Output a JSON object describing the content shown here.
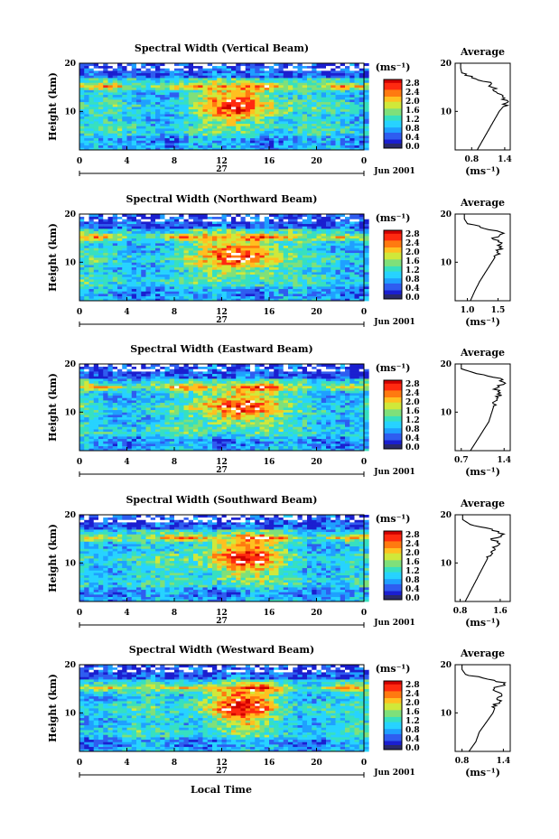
{
  "figure": {
    "date_label": "Jun 2001",
    "day_label": "27",
    "xlabel": "Local Time",
    "ylabel": "Height (km)",
    "unit_label": "(ms⁻¹)",
    "avg_title": "Average",
    "x_ticks": [
      "0",
      "4",
      "8",
      "12",
      "16",
      "20",
      "0"
    ],
    "y_ticks": [
      "20",
      "10"
    ],
    "colorbar_ticks": [
      "2.8",
      "2.4",
      "2.0",
      "1.6",
      "1.2",
      "0.8",
      "0.4",
      "0.0"
    ],
    "colors": {
      "scale": [
        "#2a2a6a",
        "#1b1fd0",
        "#2f5df0",
        "#1fa0ff",
        "#27d3ff",
        "#37e0c0",
        "#7fe07a",
        "#d0e83a",
        "#ffc020",
        "#ff7a10",
        "#ff2a10",
        "#d00000"
      ],
      "background_fill": "#ffffff"
    }
  },
  "chart_data": [
    {
      "type": "heatmap",
      "title": "Spectral Width (Vertical Beam)",
      "xlabel": "Local Time",
      "ylabel": "Height (km)",
      "xlim": [
        0,
        24
      ],
      "ylim": [
        2,
        20
      ],
      "clim": [
        0.0,
        2.8
      ],
      "x_ticks": [
        0,
        4,
        8,
        12,
        16,
        20,
        24
      ],
      "y_ticks": [
        10,
        20
      ],
      "profile": {
        "title": "Average",
        "xlabel": "(ms⁻¹)",
        "xlim": [
          0.5,
          1.5
        ],
        "x_ticks": [
          0.8,
          1.4
        ],
        "height": [
          2,
          4,
          6,
          8,
          10,
          12,
          14,
          16,
          17,
          18,
          19,
          20
        ],
        "value": [
          0.9,
          1.0,
          1.1,
          1.2,
          1.3,
          1.45,
          1.25,
          1.1,
          0.8,
          0.62,
          0.6,
          0.6
        ]
      }
    },
    {
      "type": "heatmap",
      "title": "Spectral Width (Northward Beam)",
      "xlabel": "Local Time",
      "ylabel": "Height (km)",
      "xlim": [
        0,
        24
      ],
      "ylim": [
        2,
        20
      ],
      "clim": [
        0.0,
        2.8
      ],
      "x_ticks": [
        0,
        4,
        8,
        12,
        16,
        20,
        24
      ],
      "y_ticks": [
        10,
        20
      ],
      "profile": {
        "title": "Average",
        "xlabel": "(ms⁻¹)",
        "xlim": [
          0.8,
          1.7
        ],
        "x_ticks": [
          1.0,
          1.5
        ],
        "height": [
          2,
          4,
          6,
          8,
          10,
          12,
          14,
          15,
          16,
          17,
          18,
          19,
          20
        ],
        "value": [
          1.05,
          1.12,
          1.2,
          1.3,
          1.4,
          1.5,
          1.55,
          1.45,
          1.58,
          1.3,
          1.0,
          0.95,
          0.95
        ]
      }
    },
    {
      "type": "heatmap",
      "title": "Spectral Width (Eastward Beam)",
      "xlabel": "Local Time",
      "ylabel": "Height (km)",
      "xlim": [
        0,
        24
      ],
      "ylim": [
        2,
        20
      ],
      "clim": [
        0.0,
        2.8
      ],
      "x_ticks": [
        0,
        4,
        8,
        12,
        16,
        20,
        24
      ],
      "y_ticks": [
        10,
        20
      ],
      "profile": {
        "title": "Average",
        "xlabel": "(ms⁻¹)",
        "xlim": [
          0.6,
          1.5
        ],
        "x_ticks": [
          0.7,
          1.4
        ],
        "height": [
          2,
          4,
          6,
          8,
          10,
          12,
          14,
          15,
          16,
          17,
          18,
          19,
          20
        ],
        "value": [
          0.85,
          0.95,
          1.05,
          1.15,
          1.2,
          1.25,
          1.35,
          1.25,
          1.4,
          1.3,
          0.95,
          0.7,
          0.7
        ]
      }
    },
    {
      "type": "heatmap",
      "title": "Spectral Width (Southward Beam)",
      "xlabel": "Local Time",
      "ylabel": "Height (km)",
      "xlim": [
        0,
        24
      ],
      "ylim": [
        2,
        20
      ],
      "clim": [
        0.0,
        2.8
      ],
      "x_ticks": [
        0,
        4,
        8,
        12,
        16,
        20,
        24
      ],
      "y_ticks": [
        10,
        20
      ],
      "profile": {
        "title": "Average",
        "xlabel": "(ms⁻¹)",
        "xlim": [
          0.7,
          1.8
        ],
        "x_ticks": [
          0.8,
          1.6
        ],
        "height": [
          2,
          4,
          6,
          8,
          10,
          12,
          14,
          15,
          16,
          17,
          18,
          19,
          20
        ],
        "value": [
          0.9,
          1.0,
          1.1,
          1.2,
          1.3,
          1.4,
          1.55,
          1.45,
          1.7,
          1.4,
          1.0,
          0.85,
          0.85
        ]
      }
    },
    {
      "type": "heatmap",
      "title": "Spectral Width (Westward Beam)",
      "xlabel": "Local Time",
      "ylabel": "Height (km)",
      "xlim": [
        0,
        24
      ],
      "ylim": [
        2,
        20
      ],
      "clim": [
        0.0,
        2.8
      ],
      "x_ticks": [
        0,
        4,
        8,
        12,
        16,
        20,
        24
      ],
      "y_ticks": [
        10,
        20
      ],
      "profile": {
        "title": "Average",
        "xlabel": "(ms⁻¹)",
        "xlim": [
          0.7,
          1.5
        ],
        "x_ticks": [
          0.8,
          1.4
        ],
        "height": [
          2,
          4,
          6,
          8,
          10,
          12,
          14,
          15,
          16,
          17,
          18,
          19,
          20
        ],
        "value": [
          0.9,
          1.0,
          1.05,
          1.15,
          1.25,
          1.3,
          1.4,
          1.25,
          1.45,
          1.2,
          0.85,
          0.8,
          0.8
        ]
      }
    }
  ]
}
